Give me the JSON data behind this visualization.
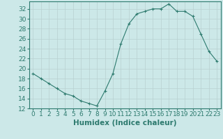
{
  "x": [
    0,
    1,
    2,
    3,
    4,
    5,
    6,
    7,
    8,
    9,
    10,
    11,
    12,
    13,
    14,
    15,
    16,
    17,
    18,
    19,
    20,
    21,
    22,
    23
  ],
  "y": [
    19,
    18,
    17,
    16,
    15,
    14.5,
    13.5,
    13,
    12.5,
    15.5,
    19,
    25,
    29,
    31,
    31.5,
    32,
    32,
    33,
    31.5,
    31.5,
    30.5,
    27,
    23.5,
    21.5
  ],
  "line_color": "#2d7a6e",
  "marker": "+",
  "bg_color": "#cce8e8",
  "xlabel": "Humidex (Indice chaleur)",
  "xlim": [
    -0.5,
    23.5
  ],
  "ylim": [
    12,
    33.5
  ],
  "yticks": [
    12,
    14,
    16,
    18,
    20,
    22,
    24,
    26,
    28,
    30,
    32
  ],
  "xticks": [
    0,
    1,
    2,
    3,
    4,
    5,
    6,
    7,
    8,
    9,
    10,
    11,
    12,
    13,
    14,
    15,
    16,
    17,
    18,
    19,
    20,
    21,
    22,
    23
  ],
  "tick_color": "#2d7a6e",
  "label_color": "#2d7a6e",
  "grid_color": "#b8d0d0",
  "font_size": 6.5,
  "xlabel_fontsize": 7.5
}
